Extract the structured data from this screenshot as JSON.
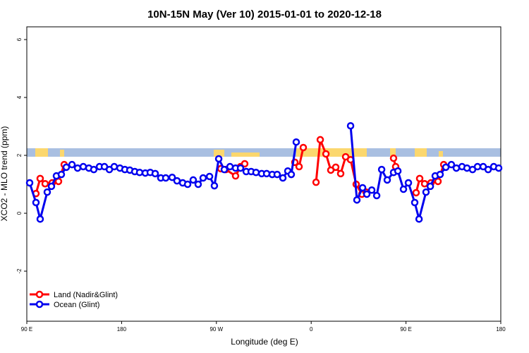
{
  "chart_data": {
    "type": "line",
    "title": "10N-15N May (Ver 10)   2015-01-01 to 2020-12-18",
    "x_label": "Longitude (deg E)",
    "y_label": "XCO2 - MLO trend (ppm)",
    "xlim": [
      90,
      540
    ],
    "xticks": [
      {
        "value": 90,
        "label": "90 E"
      },
      {
        "value": 180,
        "label": "180"
      },
      {
        "value": 270,
        "label": "90 W"
      },
      {
        "value": 360,
        "label": "0"
      },
      {
        "value": 450,
        "label": "90 E"
      },
      {
        "value": 540,
        "label": "180"
      }
    ],
    "ylim": [
      -3.73,
      6.44
    ],
    "yticks": [
      -2,
      0,
      2,
      4,
      6
    ],
    "legend": "bottom-left",
    "series": [
      {
        "name": "Land (Nadir&Glint)",
        "color": "#ff0000",
        "x": [
          98.7,
          102.7,
          107.4,
          114.1,
          120.1,
          125.5,
          null,
          274.2,
          278.9,
          288.2,
          292.9,
          296.9,
          null,
          344.5,
          348.5,
          352.5,
          null,
          364.6,
          368.6,
          374.0,
          378.6,
          383.3,
          388.0,
          392.7,
          397.4,
          402.7,
          408.1,
          412.1,
          null,
          438.2,
          440.2,
          null,
          459.6,
          463.0,
          467.7,
          473.7,
          480.4,
          485.8
        ],
        "values": [
          0.68,
          1.2,
          1.02,
          1.05,
          1.1,
          1.68,
          null,
          1.54,
          1.51,
          1.29,
          1.61,
          1.71,
          null,
          1.76,
          1.61,
          2.27,
          null,
          1.07,
          2.54,
          2.05,
          1.49,
          1.59,
          1.37,
          1.95,
          1.85,
          1.0,
          0.66,
          0.73,
          null,
          1.9,
          1.61,
          null,
          0.71,
          1.2,
          1.02,
          1.05,
          1.1,
          1.68
        ]
      },
      {
        "name": "Ocean (Glint)",
        "color": "#0000ee",
        "x": [
          92.7,
          98.7,
          102.7,
          109.4,
          113.4,
          118.1,
          122.8,
          127.5,
          132.9,
          138.2,
          143.6,
          148.9,
          153.6,
          159.0,
          163.7,
          168.4,
          173.0,
          178.4,
          183.1,
          187.8,
          192.5,
          197.1,
          202.5,
          207.2,
          211.9,
          217.2,
          221.9,
          228.0,
          232.6,
          238.0,
          242.7,
          248.0,
          252.7,
          257.4,
          263.5,
          268.1,
          272.2,
          277.5,
          282.9,
          288.2,
          292.9,
          298.3,
          303.0,
          307.6,
          313.0,
          317.7,
          323.0,
          327.7,
          333.1,
          337.8,
          341.1,
          345.8,
          null,
          397.4,
          403.4,
          408.8,
          412.8,
          417.5,
          422.2,
          426.9,
          432.2,
          438.2,
          442.3,
          447.6,
          452.3,
          458.3,
          462.4,
          469.0,
          473.1,
          477.7,
          482.4,
          487.8,
          493.1,
          497.8,
          503.2,
          507.9,
          513.2,
          517.9,
          523.3,
          528.0,
          533.3,
          538.0
        ],
        "values": [
          1.05,
          0.37,
          -0.2,
          0.73,
          0.93,
          1.29,
          1.34,
          1.59,
          1.68,
          1.56,
          1.61,
          1.56,
          1.51,
          1.61,
          1.61,
          1.51,
          1.61,
          1.56,
          1.51,
          1.49,
          1.44,
          1.41,
          1.39,
          1.41,
          1.37,
          1.22,
          1.22,
          1.24,
          1.12,
          1.05,
          1.0,
          1.15,
          1.0,
          1.22,
          1.27,
          0.95,
          1.88,
          1.51,
          1.61,
          1.56,
          1.56,
          1.44,
          1.44,
          1.41,
          1.37,
          1.37,
          1.34,
          1.34,
          1.22,
          1.46,
          1.34,
          2.46,
          null,
          3.02,
          0.46,
          0.88,
          0.66,
          0.8,
          0.61,
          1.51,
          1.15,
          1.41,
          1.46,
          0.83,
          1.05,
          0.37,
          -0.2,
          0.73,
          0.93,
          1.29,
          1.34,
          1.59,
          1.68,
          1.56,
          1.61,
          1.56,
          1.51,
          1.61,
          1.61,
          1.51,
          1.61,
          1.56
        ]
      }
    ]
  }
}
